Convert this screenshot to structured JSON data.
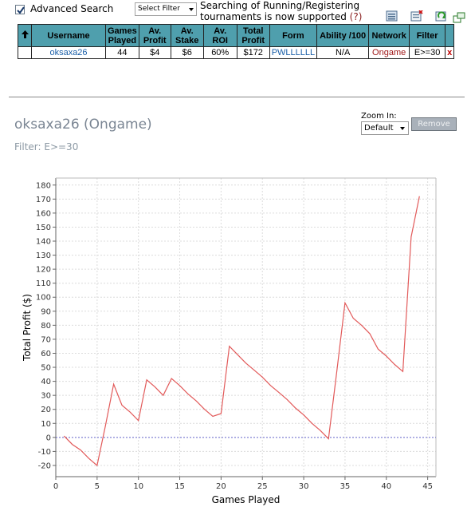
{
  "search": {
    "advanced_label": "Advanced Search",
    "advanced_checked": true,
    "filter_select": "Select Filter",
    "notice_text": "Searching of Running/Registering tournaments is now supported",
    "notice_help": "(?)"
  },
  "toolbar": {
    "icons": [
      "export-icon",
      "delete-icon",
      "refresh-icon",
      "popout-icon"
    ]
  },
  "table": {
    "headers": {
      "sort": "🠉",
      "username": "Username",
      "games": [
        "Games",
        "Played"
      ],
      "av_profit": [
        "Av.",
        "Profit"
      ],
      "av_stake": [
        "Av.",
        "Stake"
      ],
      "av_roi": [
        "Av.",
        "ROI"
      ],
      "total_profit": [
        "Total",
        "Profit"
      ],
      "form": "Form",
      "ability": "Ability /100",
      "network": "Network",
      "filter": "Filter"
    },
    "row": {
      "username": "oksaxa26",
      "games": "44",
      "av_profit": "$4",
      "av_stake": "$6",
      "av_roi": "60%",
      "total_profit": "$172",
      "form": "PWLLLLLL",
      "ability": "N/A",
      "network": "Ongame",
      "filter": "E>=30",
      "remove": "x"
    }
  },
  "player": {
    "title": "oksaxa26 (Ongame)",
    "filter_line": "Filter: E>=30"
  },
  "zoom": {
    "label": "Zoom In:",
    "selected": "Default",
    "remove_label": "Remove"
  },
  "colors": {
    "header_bg": "#4f9fad",
    "line": "#e25a5a",
    "zero_line": "#6a6ad0"
  },
  "chart_data": {
    "type": "line",
    "xlabel": "Games Played",
    "ylabel": "Total Profit ($)",
    "xlim": [
      0,
      46
    ],
    "ylim": [
      -28,
      185
    ],
    "x_ticks": [
      0,
      5,
      10,
      15,
      20,
      25,
      30,
      35,
      40,
      45
    ],
    "y_ticks": [
      -20,
      -10,
      0,
      10,
      20,
      30,
      40,
      50,
      60,
      70,
      80,
      90,
      100,
      110,
      120,
      130,
      140,
      150,
      160,
      170,
      180
    ],
    "grid": true,
    "series": [
      {
        "x": [
          1,
          2,
          3,
          4,
          5,
          6,
          7,
          8,
          9,
          10,
          11,
          12,
          13,
          14,
          15,
          16,
          17,
          18,
          19,
          20,
          21,
          22,
          23,
          24,
          25,
          26,
          27,
          28,
          29,
          30,
          31,
          32,
          33,
          34,
          35,
          36,
          37,
          38,
          39,
          40,
          41,
          42,
          43,
          44
        ],
        "values": [
          1,
          -5,
          -9,
          -15,
          -20,
          8,
          38,
          23,
          18,
          12,
          41,
          36,
          30,
          42,
          37,
          31,
          26,
          20,
          15,
          17,
          65,
          59,
          53,
          48,
          43,
          37,
          32,
          27,
          21,
          16,
          10,
          5,
          -1,
          47,
          96,
          85,
          80,
          74,
          63,
          58,
          52,
          47,
          143,
          172
        ]
      }
    ]
  }
}
